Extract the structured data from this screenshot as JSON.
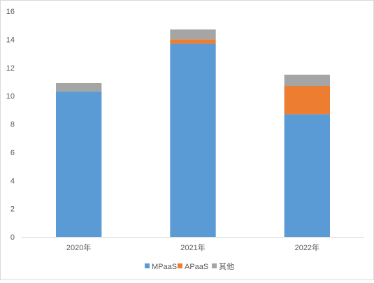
{
  "chart_data": {
    "type": "bar",
    "stacked": true,
    "categories": [
      "2020年",
      "2021年",
      "2022年"
    ],
    "series": [
      {
        "name": "MPaaS",
        "values": [
          10.3,
          13.7,
          8.7
        ],
        "color": "#5b9bd5"
      },
      {
        "name": "APaaS",
        "values": [
          0.0,
          0.3,
          2.0
        ],
        "color": "#ed7d31"
      },
      {
        "name": "其他",
        "values": [
          0.6,
          0.7,
          0.8
        ],
        "color": "#a5a5a5"
      }
    ],
    "y_ticks": [
      "0",
      "2",
      "4",
      "6",
      "8",
      "10",
      "12",
      "14",
      "16"
    ],
    "ylim": [
      0,
      16
    ],
    "grid": false,
    "legend_position": "bottom"
  }
}
